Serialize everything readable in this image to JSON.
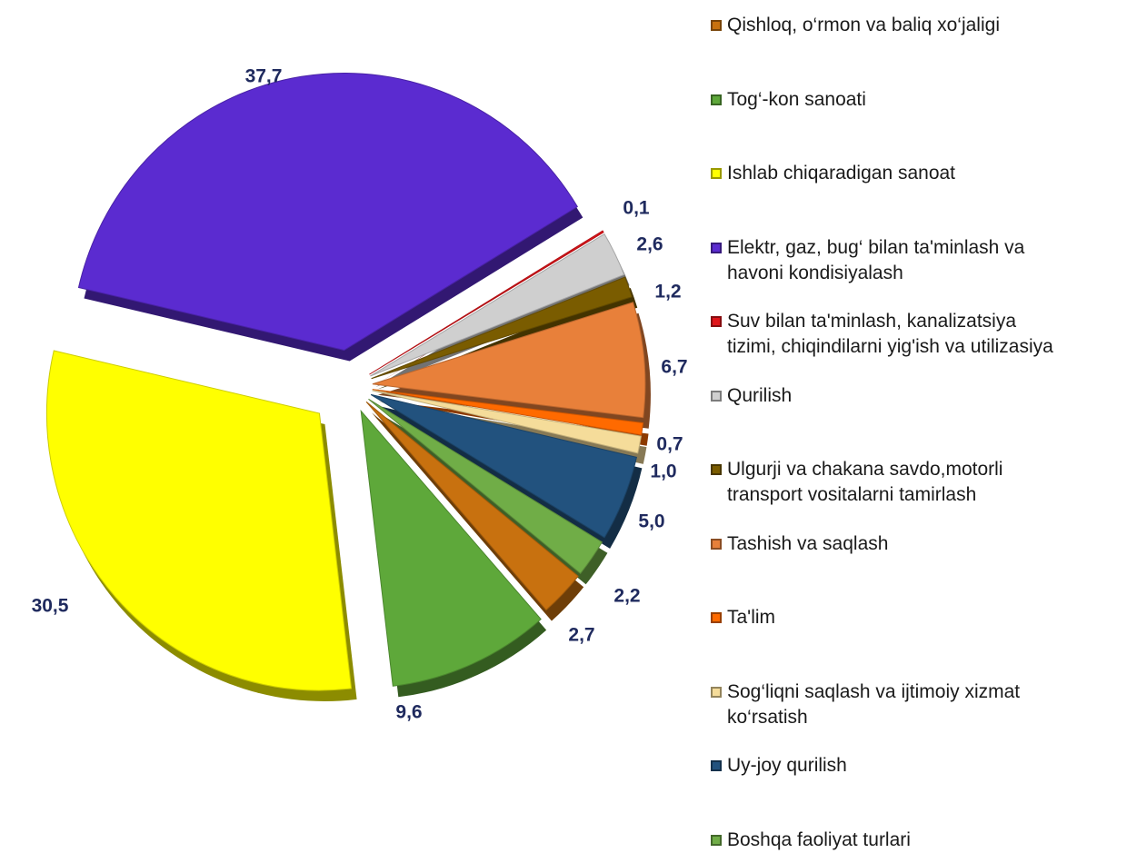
{
  "chart_data": {
    "type": "pie",
    "categories": [
      "Qishloq, o‘rmon va baliq xo‘jaligi",
      "Tog‘-kon sanoati",
      "Ishlab chiqaradigan sanoat",
      "Elektr, gaz, bug‘ bilan ta'minlash va\nhavoni kondisiyalash",
      "Suv bilan ta'minlash, kanalizatsiya\ntizimi, chiqindilarni yig'ish va utilizasiya",
      "Qurilish",
      "Ulgurji va chakana savdo,motorli\ntransport vositalarni tamirlash",
      "Tashish va saqlash",
      "Ta'lim",
      "Sog‘liqni saqlash va ijtimoiy xizmat\nko‘rsatish",
      "Uy-joy qurilish",
      "Boshqa  faoliyat  turlari"
    ],
    "values": [
      2.7,
      9.6,
      30.5,
      37.7,
      0.1,
      2.6,
      1.2,
      6.7,
      0.7,
      1.0,
      5.0,
      2.2
    ],
    "value_labels": [
      "2,7",
      "9,6",
      "30,5",
      "37,7",
      "0,1",
      "2,6",
      "1,2",
      "6,7",
      "0,7",
      "1,0",
      "5,0",
      "2,2"
    ],
    "colors": [
      "#c8710f",
      "#5ea83a",
      "#ffff00",
      "#5b2bd0",
      "#e0151a",
      "#cfcfcf",
      "#7a5c00",
      "#e8803a",
      "#ff6a00",
      "#f5dc9a",
      "#22527e",
      "#70ad47"
    ],
    "legend": "right"
  }
}
